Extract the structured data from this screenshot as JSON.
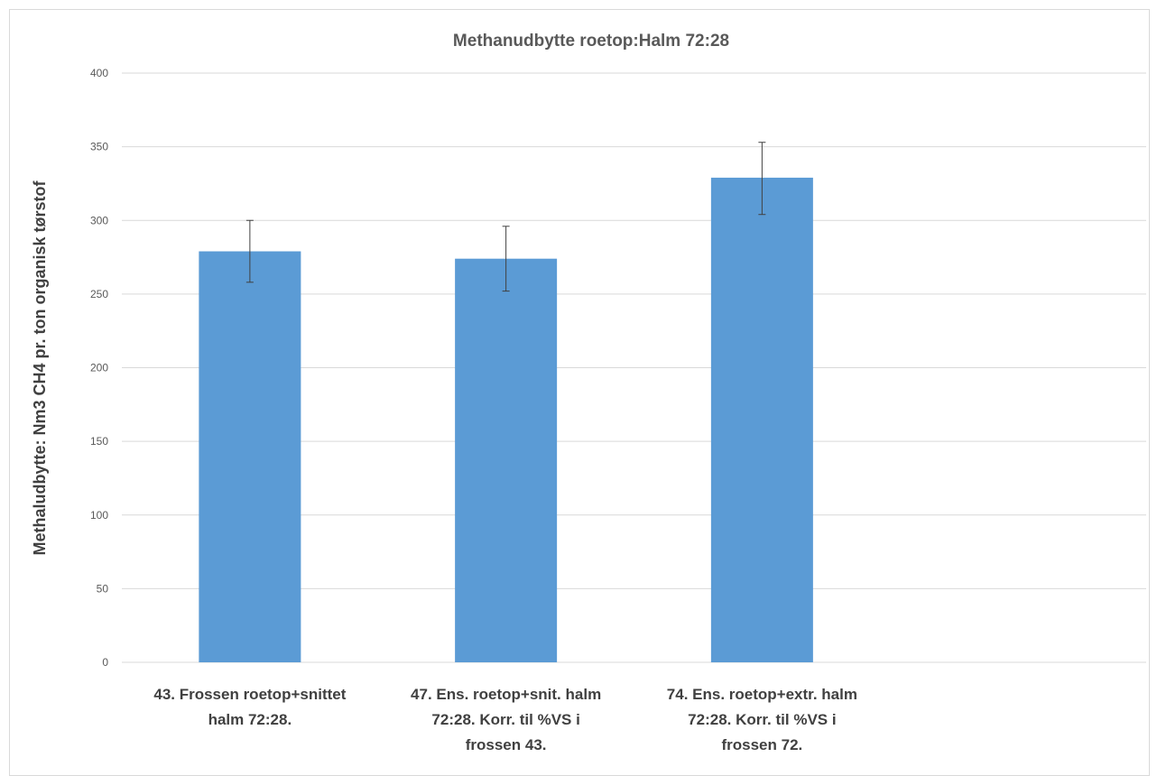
{
  "chart_data": {
    "type": "bar",
    "title": "Methanudbytte  roetop:Halm 72:28",
    "xlabel": "",
    "ylabel": "Methaludbytte: Nm3 CH4 pr. ton organisk tørstof",
    "ylim": [
      0,
      400
    ],
    "yticks": [
      0,
      50,
      100,
      150,
      200,
      250,
      300,
      350,
      400
    ],
    "grid": true,
    "legend": "none",
    "categories": [
      [
        "43. Frossen roetop+snittet",
        "halm 72:28."
      ],
      [
        "47. Ens. roetop+snit. halm",
        "72:28. Korr. til %VS i",
        "frossen 43."
      ],
      [
        "74. Ens. roetop+extr. halm",
        "72:28. Korr. til %VS i",
        "frossen 72."
      ],
      [
        ""
      ]
    ],
    "series": [
      {
        "values": [
          279,
          274,
          329,
          null
        ],
        "error_low": [
          258,
          252,
          304,
          null
        ],
        "error_high": [
          300,
          296,
          353,
          null
        ],
        "color": "#5b9bd5"
      }
    ]
  }
}
